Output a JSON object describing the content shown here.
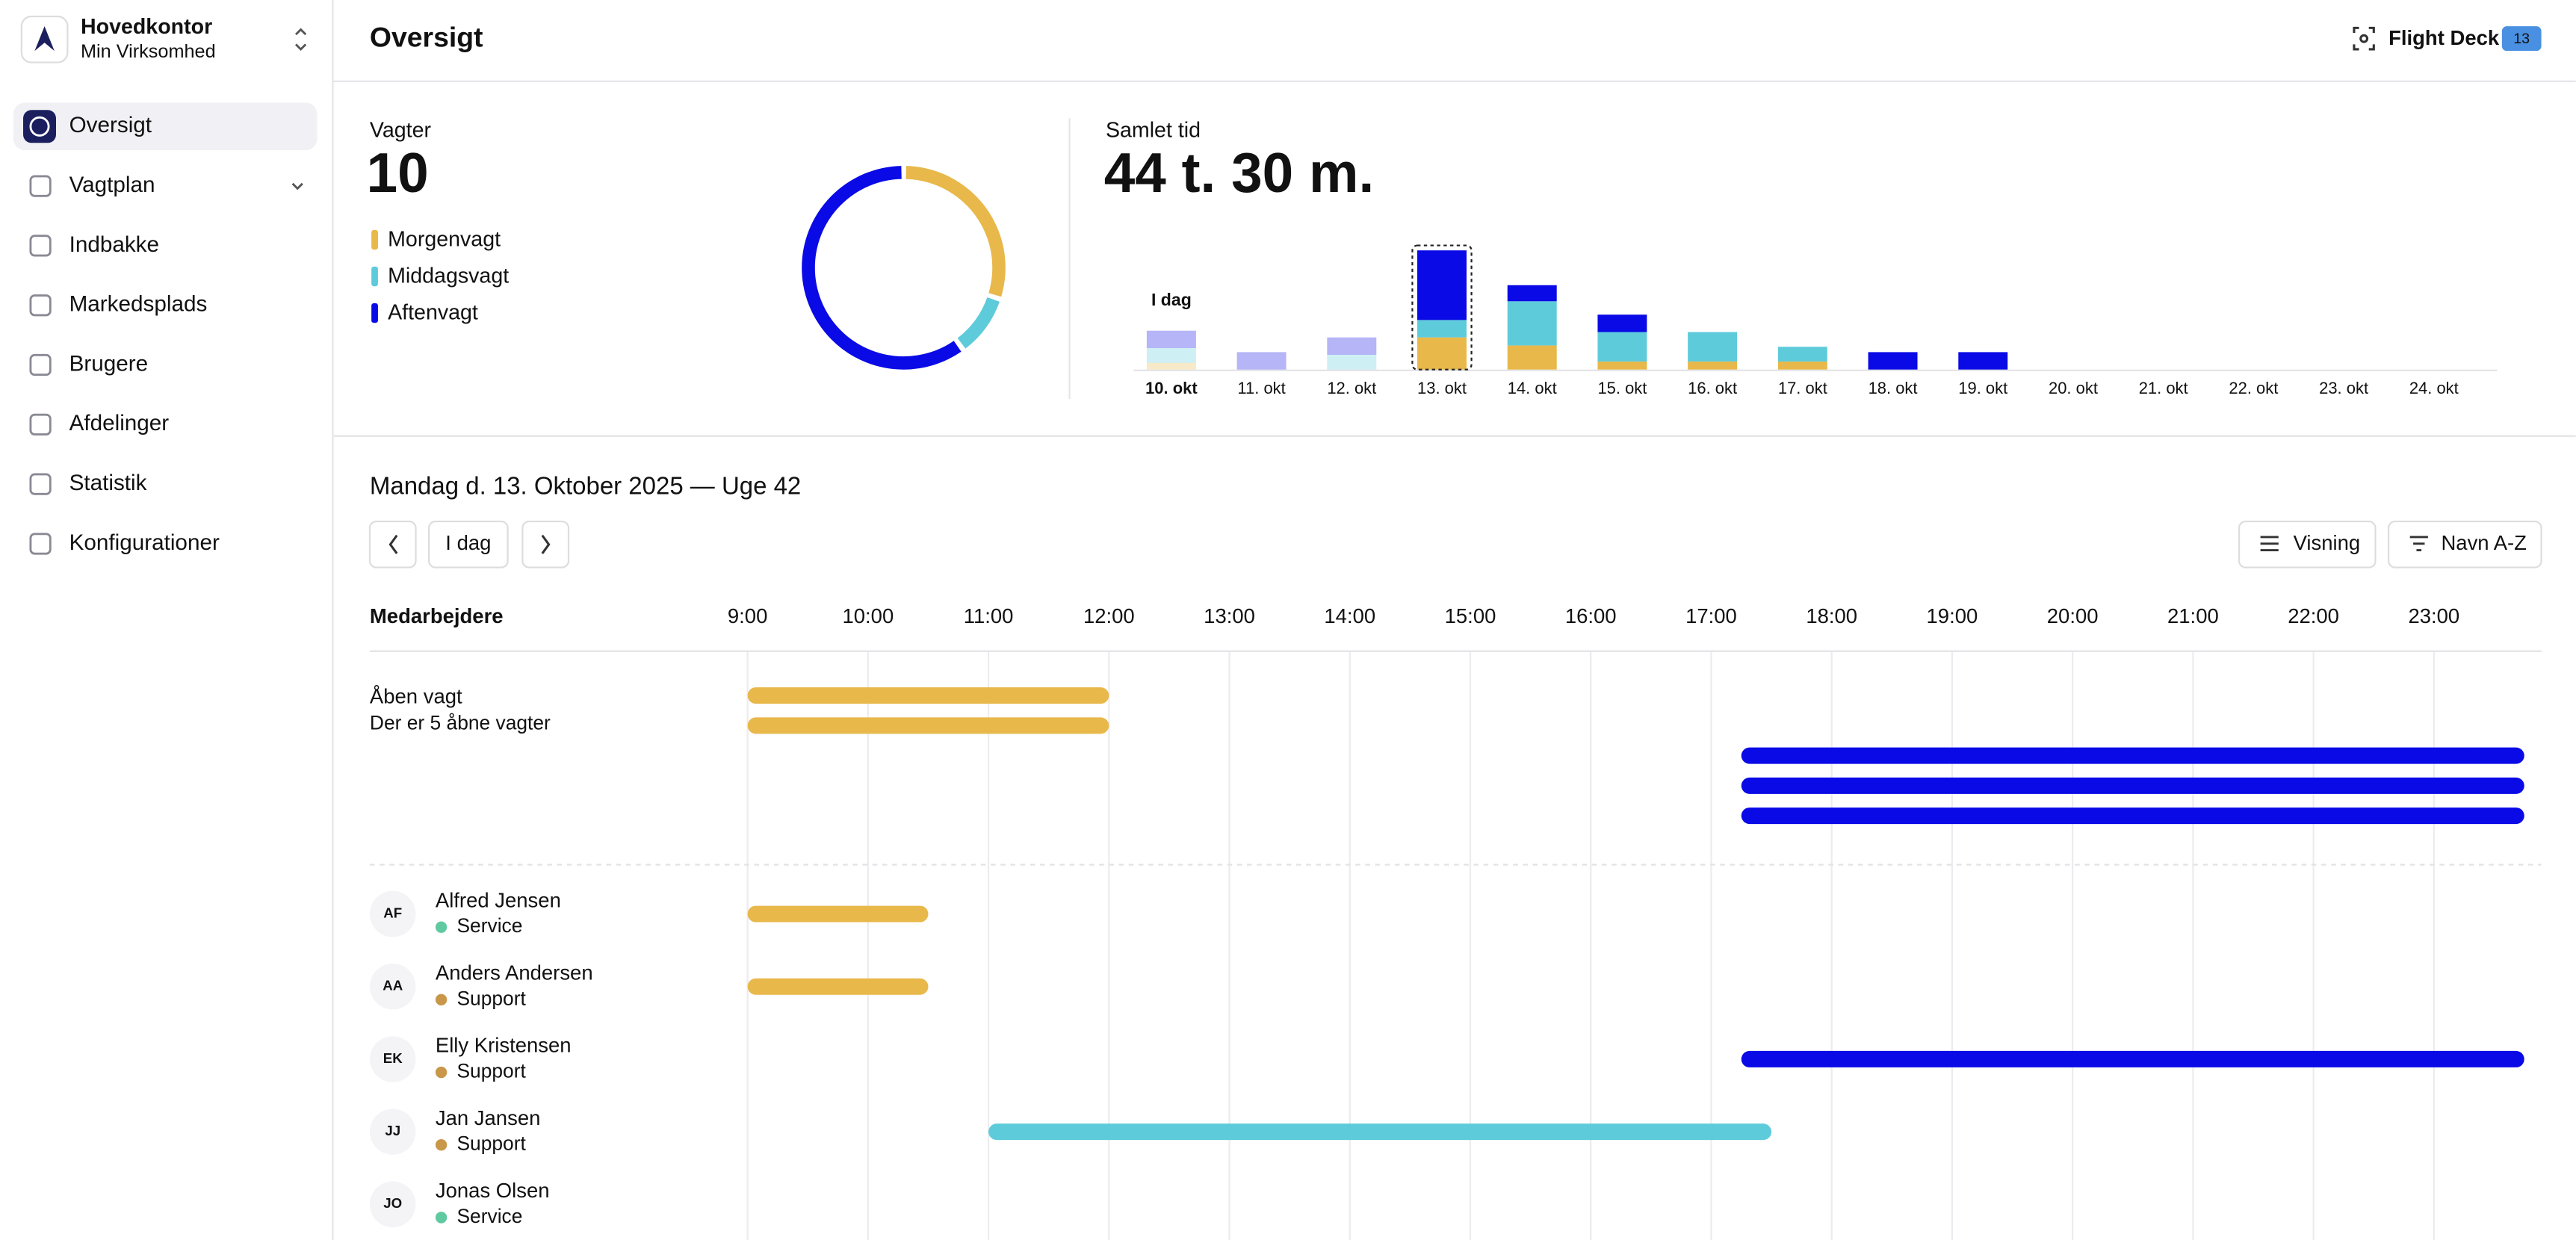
{
  "workspace": {
    "name": "Hovedkontor",
    "company": "Min Virksomhed"
  },
  "nav": [
    {
      "label": "Oversigt",
      "active": true
    },
    {
      "label": "Vagtplan",
      "active": false,
      "expandable": true
    },
    {
      "label": "Indbakke",
      "active": false
    },
    {
      "label": "Markedsplads",
      "active": false
    },
    {
      "label": "Brugere",
      "active": false
    },
    {
      "label": "Afdelinger",
      "active": false
    },
    {
      "label": "Statistik",
      "active": false
    },
    {
      "label": "Konfigurationer",
      "active": false
    }
  ],
  "header": {
    "title": "Oversigt",
    "flight_deck": "Flight Deck",
    "badge": 13
  },
  "shifts_card": {
    "label": "Vagter",
    "total": 10,
    "chart": {
      "type": "donut",
      "series": [
        {
          "name": "Morgenvagt",
          "color": "#e8b84a",
          "value": 3
        },
        {
          "name": "Middagsvagt",
          "color": "#5ecbdb",
          "value": 1
        },
        {
          "name": "Aftenvagt",
          "color": "#0a0ae6",
          "value": 6
        }
      ]
    }
  },
  "time_card": {
    "label": "Samlet tid",
    "total": "44 t. 30 m.",
    "chart": {
      "type": "bar",
      "stacked": true,
      "ylim": [
        0,
        46
      ],
      "today_label": "I dag",
      "today_index": 0,
      "selected_index": 3,
      "categories": [
        "10. okt",
        "11. okt",
        "12. okt",
        "13. okt",
        "14. okt",
        "15. okt",
        "16. okt",
        "17. okt",
        "18. okt",
        "19. okt",
        "20. okt",
        "21. okt",
        "22. okt",
        "23. okt",
        "24. okt"
      ],
      "series": [
        {
          "name": "Morgenvagt",
          "color": "#e8b84a",
          "values": [
            2.5,
            0,
            0,
            12,
            9,
            3,
            3,
            3,
            0,
            0,
            0,
            0,
            0,
            0,
            0
          ]
        },
        {
          "name": "Middagsvagt",
          "color": "#5ecbdb",
          "values": [
            5.5,
            0,
            5.5,
            6.5,
            16.5,
            11,
            11,
            5.5,
            0,
            0,
            0,
            0,
            0,
            0,
            0
          ]
        },
        {
          "name": "Aftenvagt",
          "color": "#0a0ae6",
          "values": [
            6.5,
            6.5,
            6.5,
            26,
            6,
            6.5,
            0,
            0,
            6.5,
            6.5,
            0,
            0,
            0,
            0,
            0
          ]
        }
      ]
    }
  },
  "schedule": {
    "date_title": "Mandag d. 13. Oktober 2025 — Uge 42",
    "today_button": "I dag",
    "view_button": "Visning",
    "sort_button": "Navn A-Z",
    "column_header": "Medarbejdere",
    "xlim": [
      9,
      24
    ],
    "xticks": [
      {
        "value": 9,
        "label": "9:00"
      },
      {
        "value": 10,
        "label": "10:00"
      },
      {
        "value": 11,
        "label": "11:00"
      },
      {
        "value": 12,
        "label": "12:00"
      },
      {
        "value": 13,
        "label": "13:00"
      },
      {
        "value": 14,
        "label": "14:00"
      },
      {
        "value": 15,
        "label": "15:00"
      },
      {
        "value": 16,
        "label": "16:00"
      },
      {
        "value": 17,
        "label": "17:00"
      },
      {
        "value": 18,
        "label": "18:00"
      },
      {
        "value": 19,
        "label": "19:00"
      },
      {
        "value": 20,
        "label": "20:00"
      },
      {
        "value": 21,
        "label": "21:00"
      },
      {
        "value": 22,
        "label": "22:00"
      },
      {
        "value": 23,
        "label": "23:00"
      }
    ],
    "open_shifts": {
      "name": "Åben vagt",
      "subtitle": "Der er 5 åbne vagter",
      "shifts": [
        {
          "start": 9,
          "end": 12,
          "color": "#e8b84a"
        },
        {
          "start": 9,
          "end": 12,
          "color": "#e8b84a"
        },
        {
          "start": 17.25,
          "end": 23.75,
          "color": "#0a0ae6"
        },
        {
          "start": 17.25,
          "end": 23.75,
          "color": "#0a0ae6"
        },
        {
          "start": 17.25,
          "end": 23.75,
          "color": "#0a0ae6"
        }
      ]
    },
    "employees": [
      {
        "initials": "AF",
        "name": "Alfred Jensen",
        "department": "Service",
        "dept_color": "#5fc9a0",
        "shifts": [
          {
            "start": 9,
            "end": 10.5,
            "color": "#e8b84a"
          }
        ]
      },
      {
        "initials": "AA",
        "name": "Anders Andersen",
        "department": "Support",
        "dept_color": "#c9974a",
        "shifts": [
          {
            "start": 9,
            "end": 10.5,
            "color": "#e8b84a"
          }
        ]
      },
      {
        "initials": "EK",
        "name": "Elly Kristensen",
        "department": "Support",
        "dept_color": "#c9974a",
        "shifts": [
          {
            "start": 17.25,
            "end": 23.75,
            "color": "#0a0ae6"
          }
        ]
      },
      {
        "initials": "JJ",
        "name": "Jan Jansen",
        "department": "Support",
        "dept_color": "#c9974a",
        "shifts": [
          {
            "start": 11,
            "end": 17.5,
            "color": "#5ecbdb"
          }
        ]
      },
      {
        "initials": "JO",
        "name": "Jonas Olsen",
        "department": "Service",
        "dept_color": "#5fc9a0",
        "shifts": []
      }
    ]
  }
}
